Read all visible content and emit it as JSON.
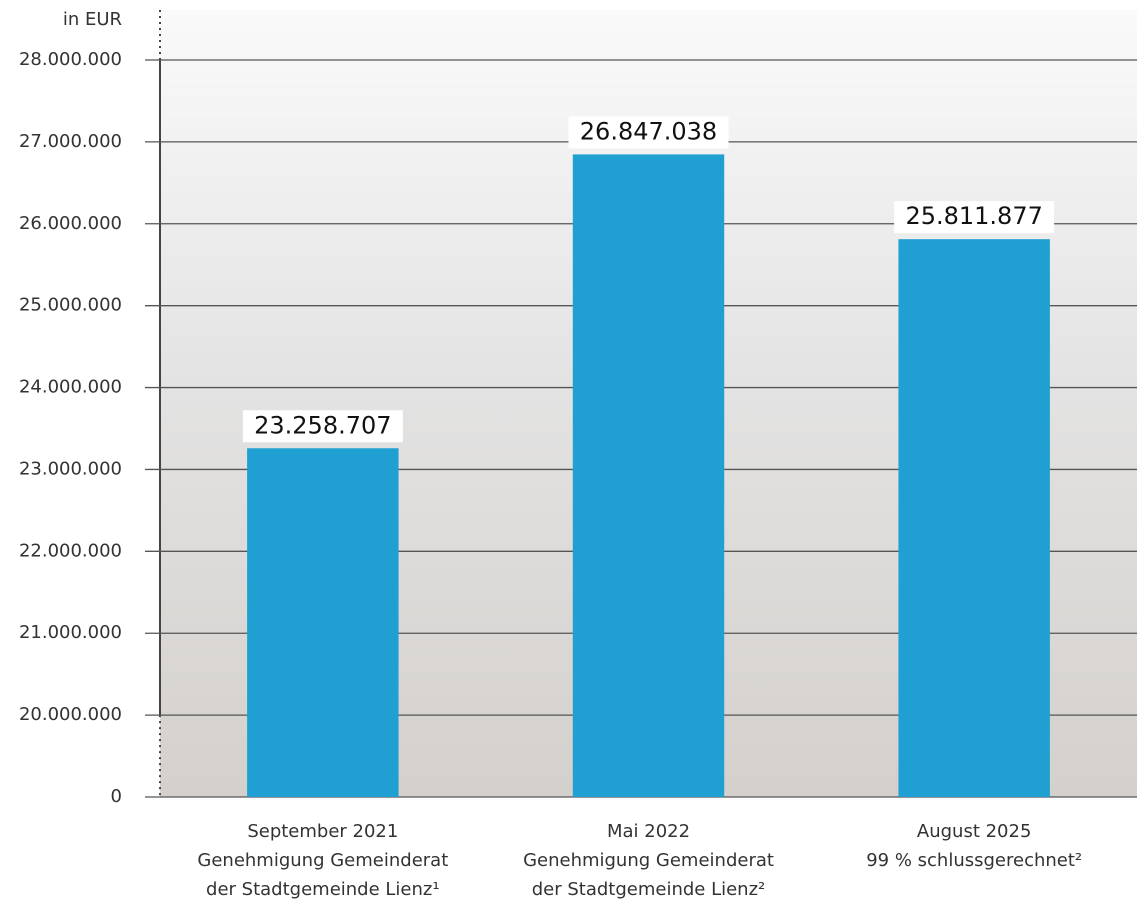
{
  "chart_data": {
    "type": "bar",
    "y_label": "in EUR",
    "categories": [
      [
        "September 2021",
        "Genehmigung Gemeinderat",
        "der Stadtgemeinde Lienz¹"
      ],
      [
        "Mai 2022",
        "Genehmigung Gemeinderat",
        "der Stadtgemeinde Lienz²"
      ],
      [
        "August 2025",
        "99 % schlussgerechnet²"
      ]
    ],
    "values": [
      23258707,
      26847038,
      25811877
    ],
    "value_labels": [
      "23.258.707",
      "26.847.038",
      "25.811.877"
    ],
    "color": "#1f9fd2",
    "ylim": [
      0,
      28000000
    ],
    "y_break": [
      0,
      20000000
    ],
    "yticks": [
      0,
      {
        "value": 20000000,
        "label": "20.000.000"
      },
      {
        "value": 21000000,
        "label": "21.000.000"
      },
      {
        "value": 22000000,
        "label": "22.000.000"
      },
      {
        "value": 23000000,
        "label": "23.000.000"
      },
      {
        "value": 24000000,
        "label": "24.000.000"
      },
      {
        "value": 25000000,
        "label": "25.000.000"
      },
      {
        "value": 26000000,
        "label": "26.000.000"
      },
      {
        "value": 27000000,
        "label": "27.000.000"
      },
      {
        "value": 28000000,
        "label": "28.000.000"
      }
    ],
    "grid": true
  }
}
